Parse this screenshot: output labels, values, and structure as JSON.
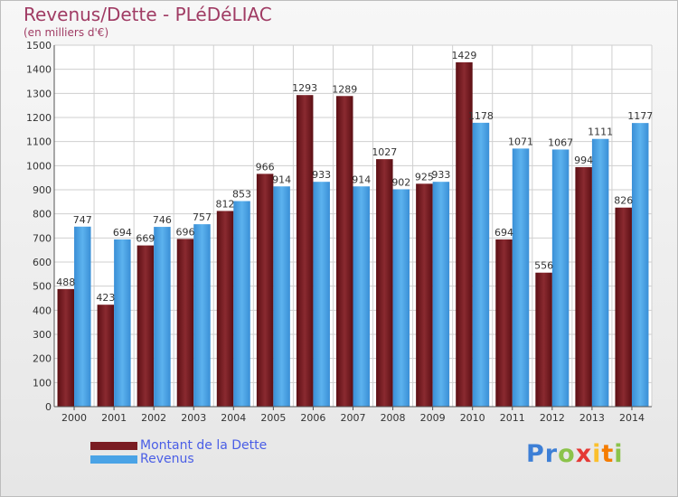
{
  "title": "Revenus/Dette - PLéDéLIAC",
  "subtitle": "(en milliers d'€)",
  "logo": {
    "letters": [
      "P",
      "r",
      "o",
      "x",
      "i",
      "t",
      "i"
    ],
    "colors": [
      "#3d7fd6",
      "#3d7fd6",
      "#8bc34a",
      "#e53935",
      "#fbc02d",
      "#f57c00",
      "#8bc34a"
    ]
  },
  "chart_data": {
    "type": "bar",
    "categories": [
      "2000",
      "2001",
      "2002",
      "2003",
      "2004",
      "2005",
      "2006",
      "2007",
      "2008",
      "2009",
      "2010",
      "2011",
      "2012",
      "2013",
      "2014"
    ],
    "series": [
      {
        "name": "Montant de la Dette",
        "color": "#7a1c22",
        "values": [
          488,
          423,
          669,
          696,
          812,
          966,
          1293,
          1289,
          1027,
          925,
          1429,
          694,
          556,
          994,
          826
        ],
        "labels": [
          "488",
          "423",
          "669",
          "696",
          "812",
          "966",
          "1293",
          "1289",
          "1027",
          "925",
          "1429",
          "694",
          "556",
          "994",
          "826"
        ]
      },
      {
        "name": "Revenus",
        "color": "#4aa3e6",
        "values": [
          747,
          694,
          746,
          757,
          853,
          914,
          933,
          914,
          902,
          933,
          1178,
          1071,
          1067,
          1111,
          1177
        ],
        "labels": [
          "747",
          "694",
          "746",
          "757",
          "853",
          "914",
          "933",
          "914",
          "902",
          "933",
          "1178",
          "1071",
          "1067",
          "1111",
          "1177"
        ]
      }
    ],
    "ylim": [
      0,
      1500
    ],
    "yticks": [
      "0",
      "100",
      "200",
      "300",
      "400",
      "500",
      "600",
      "700",
      "800",
      "900",
      "1000",
      "1100",
      "1200",
      "1300",
      "1400",
      "1500"
    ],
    "grid": true,
    "legend": "bottom-left"
  }
}
